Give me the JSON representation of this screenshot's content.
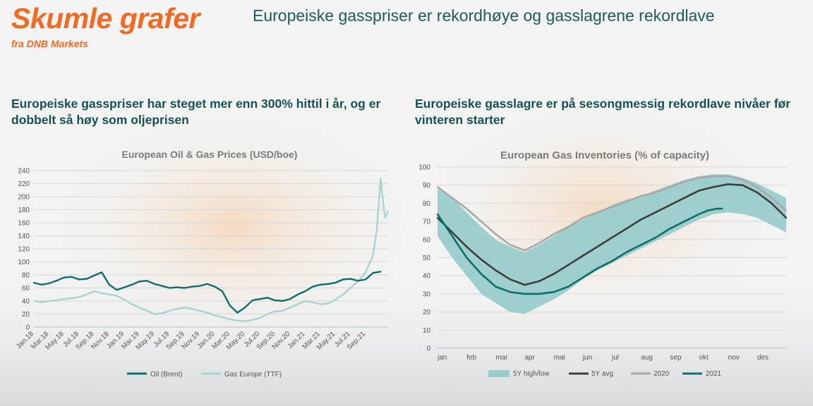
{
  "brand": {
    "title": "Skumle grafer",
    "subtitle": "fra DNB Markets"
  },
  "headline": "Europeiske gasspriser er rekordhøye og gasslagrene rekordlave",
  "colors": {
    "brand_orange": "#f26a21",
    "teal_dark": "#0f6e6a",
    "teal_light": "#a8d4d1",
    "band": "#99cccb",
    "avg": "#3e3e3e",
    "grey2020": "#a9a9a9",
    "title_green": "#17524f"
  },
  "left": {
    "heading": "Europeiske gasspriser har steget mer enn 300% hittil i år, og er dobbelt så høy som oljeprisen"
  },
  "right": {
    "heading": "Europeiske gasslagre er på sesongmessig rekordlave nivåer før vinteren starter"
  },
  "chart_data": [
    {
      "type": "line",
      "title": "European Oil & Gas Prices (USD/boe)",
      "ylim": [
        0,
        240
      ],
      "yticks": [
        "0",
        "20",
        "40",
        "60",
        "80",
        "100",
        "120",
        "140",
        "160",
        "180",
        "200",
        "220",
        "240"
      ],
      "xlim": [
        0,
        47
      ],
      "xticks": [
        "Jan.18",
        "Mar.18",
        "May.18",
        "Jul.18",
        "Sep.18",
        "Nov.18",
        "Jan.19",
        "Mar.19",
        "May.19",
        "Jul.19",
        "Sep.19",
        "Nov.19",
        "Jan.20",
        "Mar.20",
        "May.20",
        "Jul.20",
        "Sep.20",
        "Nov.20",
        "Jan.21",
        "Mar.21",
        "May.21",
        "Jul.21",
        "Sep.21"
      ],
      "grid": true,
      "legend_position": "bottom",
      "series": [
        {
          "name": "Oil (Brent)",
          "color": "#0f6e6a",
          "points": [
            [
              0,
              68
            ],
            [
              1,
              65
            ],
            [
              2,
              67
            ],
            [
              3,
              71
            ],
            [
              4,
              76
            ],
            [
              5,
              77
            ],
            [
              6,
              73
            ],
            [
              7,
              74
            ],
            [
              8,
              79
            ],
            [
              9,
              84
            ],
            [
              10,
              65
            ],
            [
              11,
              57
            ],
            [
              12,
              61
            ],
            [
              13,
              65
            ],
            [
              14,
              70
            ],
            [
              15,
              71
            ],
            [
              16,
              66
            ],
            [
              17,
              63
            ],
            [
              18,
              60
            ],
            [
              19,
              61
            ],
            [
              20,
              60
            ],
            [
              21,
              62
            ],
            [
              22,
              63
            ],
            [
              23,
              66
            ],
            [
              24,
              62
            ],
            [
              25,
              55
            ],
            [
              26,
              33
            ],
            [
              27,
              22
            ],
            [
              28,
              30
            ],
            [
              29,
              41
            ],
            [
              30,
              43
            ],
            [
              31,
              45
            ],
            [
              32,
              41
            ],
            [
              33,
              40
            ],
            [
              34,
              43
            ],
            [
              35,
              50
            ],
            [
              36,
              55
            ],
            [
              37,
              62
            ],
            [
              38,
              65
            ],
            [
              39,
              66
            ],
            [
              40,
              68
            ],
            [
              41,
              73
            ],
            [
              42,
              74
            ],
            [
              43,
              71
            ],
            [
              44,
              73
            ],
            [
              45,
              83
            ],
            [
              46,
              85
            ]
          ]
        },
        {
          "name": "Gas Europe (TTF)",
          "color": "#a8d4d1",
          "points": [
            [
              0,
              40
            ],
            [
              1,
              38
            ],
            [
              2,
              40
            ],
            [
              3,
              41
            ],
            [
              4,
              43
            ],
            [
              5,
              44
            ],
            [
              6,
              46
            ],
            [
              7,
              50
            ],
            [
              8,
              55
            ],
            [
              9,
              52
            ],
            [
              10,
              50
            ],
            [
              11,
              48
            ],
            [
              12,
              42
            ],
            [
              13,
              35
            ],
            [
              14,
              30
            ],
            [
              15,
              25
            ],
            [
              16,
              20
            ],
            [
              17,
              21
            ],
            [
              18,
              25
            ],
            [
              19,
              28
            ],
            [
              20,
              30
            ],
            [
              21,
              28
            ],
            [
              22,
              25
            ],
            [
              23,
              22
            ],
            [
              24,
              18
            ],
            [
              25,
              15
            ],
            [
              26,
              12
            ],
            [
              27,
              10
            ],
            [
              28,
              9
            ],
            [
              29,
              11
            ],
            [
              30,
              14
            ],
            [
              31,
              20
            ],
            [
              32,
              24
            ],
            [
              33,
              25
            ],
            [
              34,
              30
            ],
            [
              35,
              35
            ],
            [
              36,
              40
            ],
            [
              37,
              38
            ],
            [
              38,
              35
            ],
            [
              39,
              36
            ],
            [
              40,
              42
            ],
            [
              41,
              50
            ],
            [
              42,
              60
            ],
            [
              43,
              70
            ],
            [
              44,
              84
            ],
            [
              45,
              110
            ],
            [
              45.5,
              150
            ],
            [
              46,
              228
            ],
            [
              46.3,
              195
            ],
            [
              46.6,
              168
            ],
            [
              47,
              177
            ]
          ]
        }
      ]
    },
    {
      "type": "area",
      "title": "European Gas Inventories (% of capacity)",
      "ylim": [
        0,
        100
      ],
      "yticks": [
        "0",
        "10",
        "20",
        "30",
        "40",
        "50",
        "60",
        "70",
        "80",
        "90",
        "100"
      ],
      "xlim": [
        0,
        12
      ],
      "xticks": [
        "jan",
        "feb",
        "mar",
        "apr",
        "mai",
        "jun",
        "jul",
        "aug",
        "sep",
        "okt",
        "nov",
        "des"
      ],
      "grid": true,
      "legend_position": "bottom",
      "series": [
        {
          "name": "5Y high/low",
          "color": "#99cccb",
          "x": [
            0,
            0.5,
            1,
            1.5,
            2,
            2.5,
            3,
            3.5,
            4,
            4.5,
            5,
            5.5,
            6,
            6.5,
            7,
            7.5,
            8,
            8.5,
            9,
            9.5,
            10,
            10.5,
            11,
            11.5,
            12
          ],
          "high": [
            88,
            83,
            75,
            67,
            60,
            56,
            53,
            57,
            62,
            67,
            71,
            75,
            79,
            82,
            84,
            87,
            90,
            93,
            95,
            96,
            96,
            94,
            91,
            87,
            83
          ],
          "low": [
            62,
            50,
            40,
            30,
            25,
            20,
            19,
            23,
            27,
            32,
            38,
            43,
            47,
            51,
            55,
            59,
            63,
            67,
            71,
            74,
            75,
            74,
            72,
            68,
            64
          ]
        },
        {
          "name": "5Y avg",
          "color": "#3e3e3e",
          "x": [
            0,
            0.5,
            1,
            1.5,
            2,
            2.5,
            3,
            3.5,
            4,
            4.5,
            5,
            5.5,
            6,
            6.5,
            7,
            7.5,
            8,
            8.5,
            9,
            9.5,
            10,
            10.5,
            11,
            11.5,
            12
          ],
          "values": [
            72,
            64,
            56,
            49,
            43,
            38,
            35,
            37,
            41,
            46,
            51,
            56,
            61,
            66,
            71,
            75,
            79,
            83,
            87,
            89,
            90.5,
            90,
            86,
            80,
            72
          ]
        },
        {
          "name": "2020",
          "color": "#a9a9a9",
          "x": [
            0,
            0.5,
            1,
            1.5,
            2,
            2.5,
            3,
            3.5,
            4,
            4.5,
            5,
            5.5,
            6,
            6.5,
            7,
            7.5,
            8,
            8.5,
            9,
            9.5,
            10,
            10.5,
            11,
            11.5,
            12
          ],
          "values": [
            89,
            83,
            77,
            70,
            63,
            57,
            54,
            58,
            63,
            67,
            72,
            75,
            78,
            81,
            84,
            86,
            89,
            92,
            94,
            95,
            95,
            93,
            89,
            83,
            76
          ]
        },
        {
          "name": "2021",
          "color": "#0f6e6a",
          "x": [
            0,
            0.5,
            1,
            1.5,
            2,
            2.5,
            3,
            3.5,
            4,
            4.5,
            5,
            5.5,
            6,
            6.5,
            7,
            7.5,
            8,
            8.5,
            9,
            9.3,
            9.6,
            9.8
          ],
          "values": [
            74,
            62,
            50,
            41,
            34,
            31,
            30,
            30,
            31,
            34,
            39,
            44,
            48,
            53,
            57,
            61,
            66,
            70,
            74,
            76,
            77,
            77
          ]
        }
      ]
    }
  ]
}
